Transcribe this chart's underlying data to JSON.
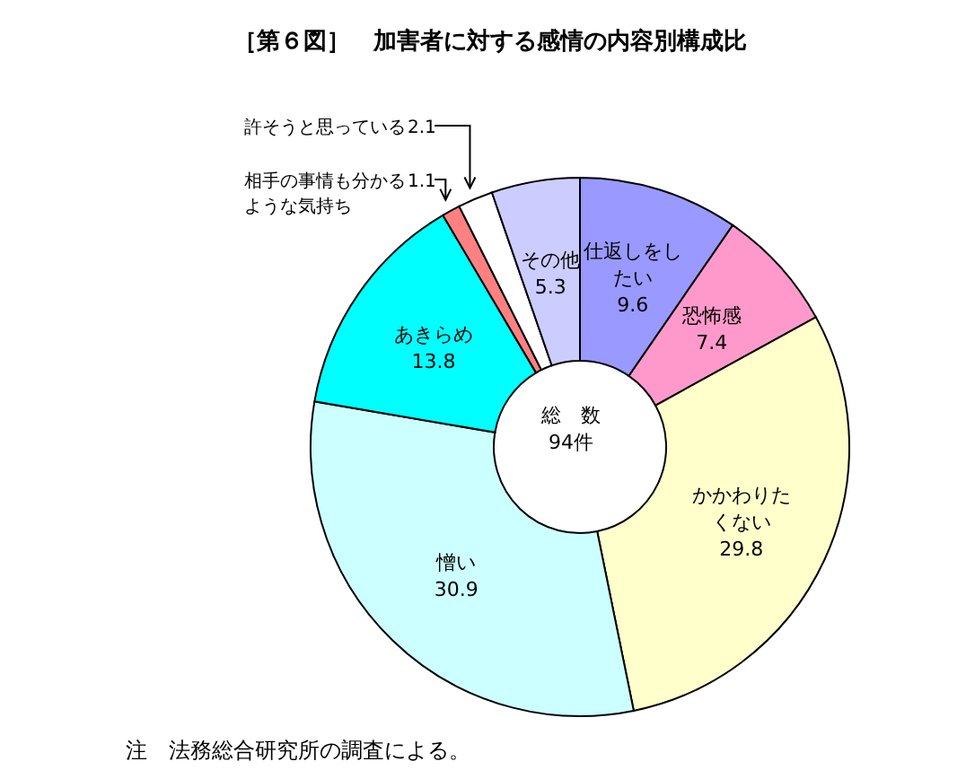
{
  "chart_data": {
    "type": "donut",
    "title": "［第６図］　加害者に対する感情の内容別構成比",
    "categories": [
      "仕返しをしたい",
      "恐怖感",
      "かかわりたくない",
      "憎い",
      "あきらめ",
      "相手の事情も分かるような気持ち",
      "許そうと思っている",
      "その他"
    ],
    "values": [
      9.6,
      7.4,
      29.8,
      30.9,
      13.8,
      1.1,
      2.1,
      5.3
    ],
    "colors": [
      "#9999ff",
      "#ff99cc",
      "#ffffcc",
      "#ccffff",
      "#00ffff",
      "#ff8080",
      "#ffffff",
      "#ccccff"
    ],
    "data_labels": true,
    "annotations": [
      "総　数",
      "94件",
      "注　法務総合研究所の調査による。"
    ]
  }
}
